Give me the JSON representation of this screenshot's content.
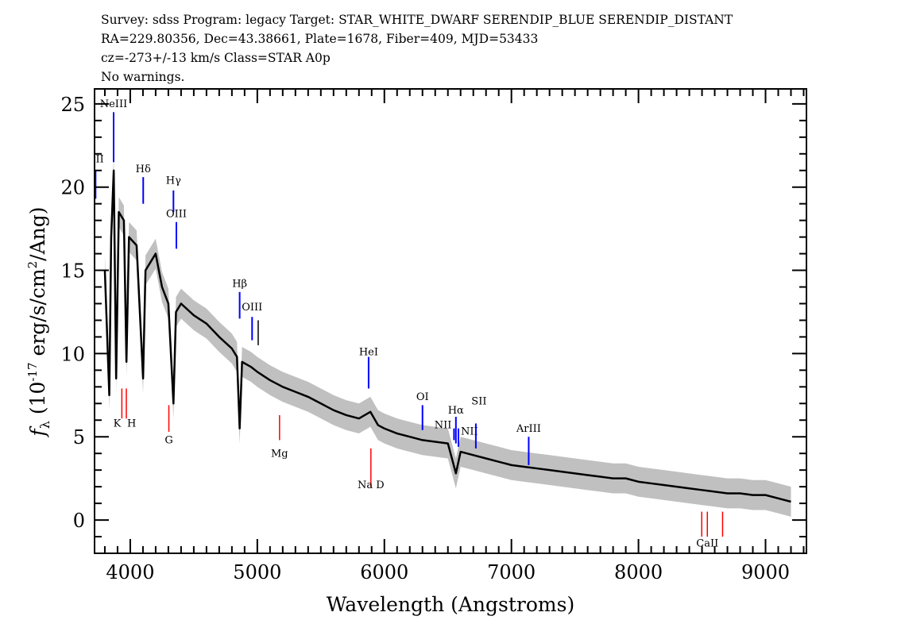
{
  "header": {
    "line1": "Survey: sdss Program: legacy Target: STAR_WHITE_DWARF SERENDIP_BLUE SERENDIP_DISTANT",
    "line2": "RA=229.80356, Dec=43.38661, Plate=1678, Fiber=409, MJD=53433",
    "line3": "cz=-273+/-13 km/s Class=STAR A0p",
    "line4": "No warnings."
  },
  "chart_data": {
    "type": "line",
    "xlabel": "Wavelength (Angstroms)",
    "ylabel": "f_λ (10^-17 erg/s/cm^2/Ang)",
    "xlim": [
      3719,
      9322
    ],
    "ylim": [
      -2,
      25.9
    ],
    "xticks": [
      4000,
      5000,
      6000,
      7000,
      8000,
      9000
    ],
    "yticks": [
      0,
      5,
      10,
      15,
      20,
      25
    ],
    "grid": false,
    "colors": {
      "spectrum": "#000000",
      "error_band": "#c0c0c0",
      "emission": "#0000ff",
      "absorption": "#ff0000",
      "sky": "#000000"
    },
    "typical_error": 0.9,
    "spectrum": [
      [
        3800,
        15
      ],
      [
        3835,
        7.5
      ],
      [
        3850,
        17
      ],
      [
        3870,
        21
      ],
      [
        3889,
        8.5
      ],
      [
        3910,
        18.5
      ],
      [
        3950,
        18
      ],
      [
        3970,
        9.5
      ],
      [
        3990,
        17
      ],
      [
        4050,
        16.5
      ],
      [
        4101,
        8.5
      ],
      [
        4120,
        15
      ],
      [
        4200,
        16
      ],
      [
        4250,
        14
      ],
      [
        4300,
        13
      ],
      [
        4340,
        7
      ],
      [
        4360,
        12.5
      ],
      [
        4400,
        13
      ],
      [
        4500,
        12.3
      ],
      [
        4600,
        11.8
      ],
      [
        4700,
        11
      ],
      [
        4800,
        10.3
      ],
      [
        4840,
        9.8
      ],
      [
        4861,
        5.5
      ],
      [
        4880,
        9.5
      ],
      [
        4950,
        9.2
      ],
      [
        5000,
        8.9
      ],
      [
        5100,
        8.4
      ],
      [
        5200,
        8
      ],
      [
        5300,
        7.7
      ],
      [
        5400,
        7.4
      ],
      [
        5500,
        7
      ],
      [
        5600,
        6.6
      ],
      [
        5700,
        6.3
      ],
      [
        5800,
        6.1
      ],
      [
        5890,
        6.5
      ],
      [
        5950,
        5.7
      ],
      [
        6000,
        5.5
      ],
      [
        6100,
        5.2
      ],
      [
        6200,
        5
      ],
      [
        6300,
        4.8
      ],
      [
        6400,
        4.7
      ],
      [
        6500,
        4.6
      ],
      [
        6563,
        2.8
      ],
      [
        6600,
        4.1
      ],
      [
        6700,
        3.9
      ],
      [
        6800,
        3.7
      ],
      [
        6900,
        3.5
      ],
      [
        7000,
        3.3
      ],
      [
        7100,
        3.2
      ],
      [
        7200,
        3.1
      ],
      [
        7300,
        3.0
      ],
      [
        7400,
        2.9
      ],
      [
        7500,
        2.8
      ],
      [
        7600,
        2.7
      ],
      [
        7700,
        2.6
      ],
      [
        7800,
        2.5
      ],
      [
        7900,
        2.5
      ],
      [
        8000,
        2.3
      ],
      [
        8100,
        2.2
      ],
      [
        8200,
        2.1
      ],
      [
        8300,
        2.0
      ],
      [
        8400,
        1.9
      ],
      [
        8500,
        1.8
      ],
      [
        8600,
        1.7
      ],
      [
        8700,
        1.6
      ],
      [
        8800,
        1.6
      ],
      [
        8900,
        1.5
      ],
      [
        9000,
        1.5
      ],
      [
        9100,
        1.3
      ],
      [
        9200,
        1.1
      ]
    ],
    "lines": [
      {
        "label": "OII",
        "wave": 3727,
        "kind": "emission",
        "y": [
          19.3,
          21
        ],
        "label_y": 21.5
      },
      {
        "label": "NeIII",
        "wave": 3869,
        "kind": "emission",
        "y": [
          21.5,
          24.5
        ],
        "label_y": 24.8
      },
      {
        "label": "Hδ",
        "wave": 4102,
        "kind": "emission",
        "y": [
          19,
          20.6
        ],
        "label_y": 20.9
      },
      {
        "label": "Hγ",
        "wave": 4340,
        "kind": "emission",
        "y": [
          18.5,
          19.8
        ],
        "label_y": 20.2
      },
      {
        "label": "OIII",
        "wave": 4363,
        "kind": "emission",
        "y": [
          16.3,
          17.9
        ],
        "label_y": 18.2
      },
      {
        "label": "Hβ",
        "wave": 4861,
        "kind": "emission",
        "y": [
          12.1,
          13.7
        ],
        "label_y": 14
      },
      {
        "label": "OIII",
        "wave": 4959,
        "kind": "emission",
        "y": [
          10.8,
          12.2
        ],
        "label_y": 12.6
      },
      {
        "label": "",
        "wave": 5007,
        "kind": "sky",
        "y": [
          10.5,
          12
        ],
        "label_y": 12.6
      },
      {
        "label": "HeI",
        "wave": 5876,
        "kind": "emission",
        "y": [
          7.9,
          9.8
        ],
        "label_y": 9.9
      },
      {
        "label": "OI",
        "wave": 6300,
        "kind": "emission",
        "y": [
          5.4,
          6.9
        ],
        "label_y": 7.2
      },
      {
        "label": "NII",
        "wave": 6548,
        "kind": "emission",
        "y": [
          4.8,
          5.5
        ],
        "label_y": 5.9
      },
      {
        "label": "Hα",
        "wave": 6563,
        "kind": "emission",
        "y": [
          4.6,
          6.2
        ],
        "label_y": 6.4
      },
      {
        "label": "NII",
        "wave": 6583,
        "kind": "emission",
        "y": [
          4.4,
          5.5
        ],
        "label_y": 5.7
      },
      {
        "label": "SII",
        "wave": 6720,
        "kind": "emission",
        "y": [
          4.3,
          5.8
        ],
        "label_y": 6.0
      },
      {
        "label": "ArIII",
        "wave": 7136,
        "kind": "emission",
        "y": [
          3.3,
          5.0
        ],
        "label_y": 5.3
      },
      {
        "label": "K",
        "wave": 3934,
        "kind": "absorption",
        "y": [
          6.1,
          7.9
        ],
        "label_y": 5.6
      },
      {
        "label": "H",
        "wave": 3969,
        "kind": "absorption",
        "y": [
          6.1,
          7.9
        ],
        "label_y": 5.6
      },
      {
        "label": "G",
        "wave": 4304,
        "kind": "absorption",
        "y": [
          5.3,
          6.9
        ],
        "label_y": 4.6
      },
      {
        "label": "Mg",
        "wave": 5175,
        "kind": "absorption",
        "y": [
          4.8,
          6.3
        ],
        "label_y": 3.8
      },
      {
        "label": "Na D",
        "wave": 5894,
        "kind": "absorption",
        "y": [
          2,
          4.3
        ],
        "label_y": 1.9
      },
      {
        "label": "",
        "wave": 8498,
        "kind": "absorption",
        "y": [
          -1,
          0.5
        ],
        "label_y": -1.6
      },
      {
        "label": "CaII",
        "wave": 8542,
        "kind": "absorption",
        "y": [
          -1,
          0.5
        ],
        "label_y": -1.6
      },
      {
        "label": "",
        "wave": 8662,
        "kind": "absorption",
        "y": [
          -1,
          0.5
        ],
        "label_y": -1.6
      }
    ]
  }
}
